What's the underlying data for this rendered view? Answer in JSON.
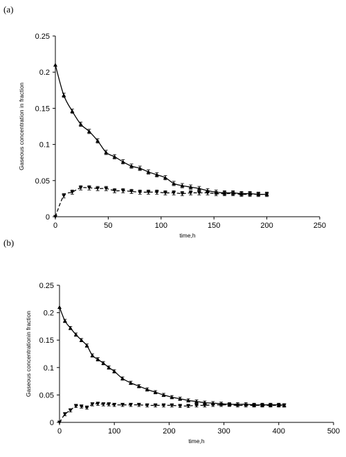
{
  "chart_data": [
    {
      "panel_label": "(a)",
      "type": "line",
      "xlabel": "time,h",
      "ylabel": "Gaseous concentration in fraction",
      "xlim": [
        0,
        250
      ],
      "ylim": [
        0,
        0.25
      ],
      "xticks": [
        "0",
        "50",
        "100",
        "150",
        "200",
        "250"
      ],
      "yticks": [
        "0",
        "0.05",
        "0.1",
        "0.15",
        "0.2",
        "0.25"
      ],
      "grid": false,
      "series": [
        {
          "marker": "triangle-up",
          "line": "solid",
          "color": "#000000",
          "x": [
            0,
            8,
            16,
            24,
            32,
            40,
            48,
            56,
            64,
            72,
            80,
            88,
            96,
            104,
            112,
            120,
            128,
            136,
            144,
            152,
            160,
            168,
            176,
            184,
            192,
            200
          ],
          "y": [
            0.21,
            0.168,
            0.146,
            0.128,
            0.118,
            0.105,
            0.089,
            0.083,
            0.076,
            0.07,
            0.067,
            0.062,
            0.058,
            0.054,
            0.046,
            0.043,
            0.041,
            0.039,
            0.036,
            0.034,
            0.033,
            0.033,
            0.032,
            0.032,
            0.031,
            0.031
          ],
          "err": 0.003
        },
        {
          "marker": "triangle-down",
          "line": "dashed",
          "color": "#000000",
          "x": [
            0,
            8,
            16,
            24,
            32,
            40,
            48,
            56,
            64,
            72,
            80,
            88,
            96,
            104,
            112,
            120,
            128,
            136,
            144,
            152,
            160,
            168,
            176,
            184,
            192,
            200
          ],
          "y": [
            0.0,
            0.029,
            0.034,
            0.04,
            0.04,
            0.039,
            0.039,
            0.036,
            0.036,
            0.035,
            0.034,
            0.034,
            0.034,
            0.033,
            0.033,
            0.032,
            0.033,
            0.033,
            0.033,
            0.032,
            0.032,
            0.032,
            0.031,
            0.031,
            0.031,
            0.031
          ],
          "err": 0.003
        }
      ]
    },
    {
      "panel_label": "(b)",
      "type": "line",
      "xlabel": "time,h",
      "ylabel": "Gaseous concentrationin fraction",
      "xlim": [
        0,
        500
      ],
      "ylim": [
        0,
        0.25
      ],
      "xticks": [
        "0",
        "100",
        "200",
        "300",
        "400",
        "500"
      ],
      "yticks": [
        "0",
        "0.05",
        "0.1",
        "0.15",
        "0.2",
        "0.25"
      ],
      "grid": false,
      "series": [
        {
          "marker": "triangle-up",
          "line": "solid",
          "color": "#000000",
          "x": [
            0,
            10,
            20,
            30,
            40,
            50,
            60,
            70,
            80,
            90,
            100,
            115,
            130,
            145,
            160,
            175,
            190,
            205,
            220,
            235,
            250,
            265,
            280,
            295,
            310,
            325,
            340,
            355,
            370,
            385,
            400,
            410
          ],
          "y": [
            0.21,
            0.185,
            0.172,
            0.16,
            0.15,
            0.14,
            0.122,
            0.115,
            0.108,
            0.1,
            0.093,
            0.08,
            0.072,
            0.066,
            0.06,
            0.055,
            0.05,
            0.046,
            0.043,
            0.04,
            0.038,
            0.036,
            0.035,
            0.034,
            0.033,
            0.033,
            0.033,
            0.032,
            0.032,
            0.032,
            0.032,
            0.031
          ],
          "err": 0.003
        },
        {
          "marker": "triangle-down",
          "line": "dashed",
          "color": "#000000",
          "x": [
            0,
            10,
            20,
            30,
            40,
            50,
            60,
            70,
            80,
            90,
            100,
            115,
            130,
            145,
            160,
            175,
            190,
            205,
            220,
            235,
            250,
            265,
            280,
            295,
            310,
            325,
            340,
            355,
            370,
            385,
            400,
            410
          ],
          "y": [
            0.0,
            0.015,
            0.022,
            0.03,
            0.029,
            0.027,
            0.033,
            0.034,
            0.033,
            0.033,
            0.032,
            0.032,
            0.032,
            0.032,
            0.031,
            0.031,
            0.031,
            0.031,
            0.03,
            0.03,
            0.031,
            0.031,
            0.032,
            0.032,
            0.032,
            0.031,
            0.031,
            0.031,
            0.031,
            0.031,
            0.031,
            0.031
          ],
          "err": 0.003
        }
      ]
    }
  ]
}
